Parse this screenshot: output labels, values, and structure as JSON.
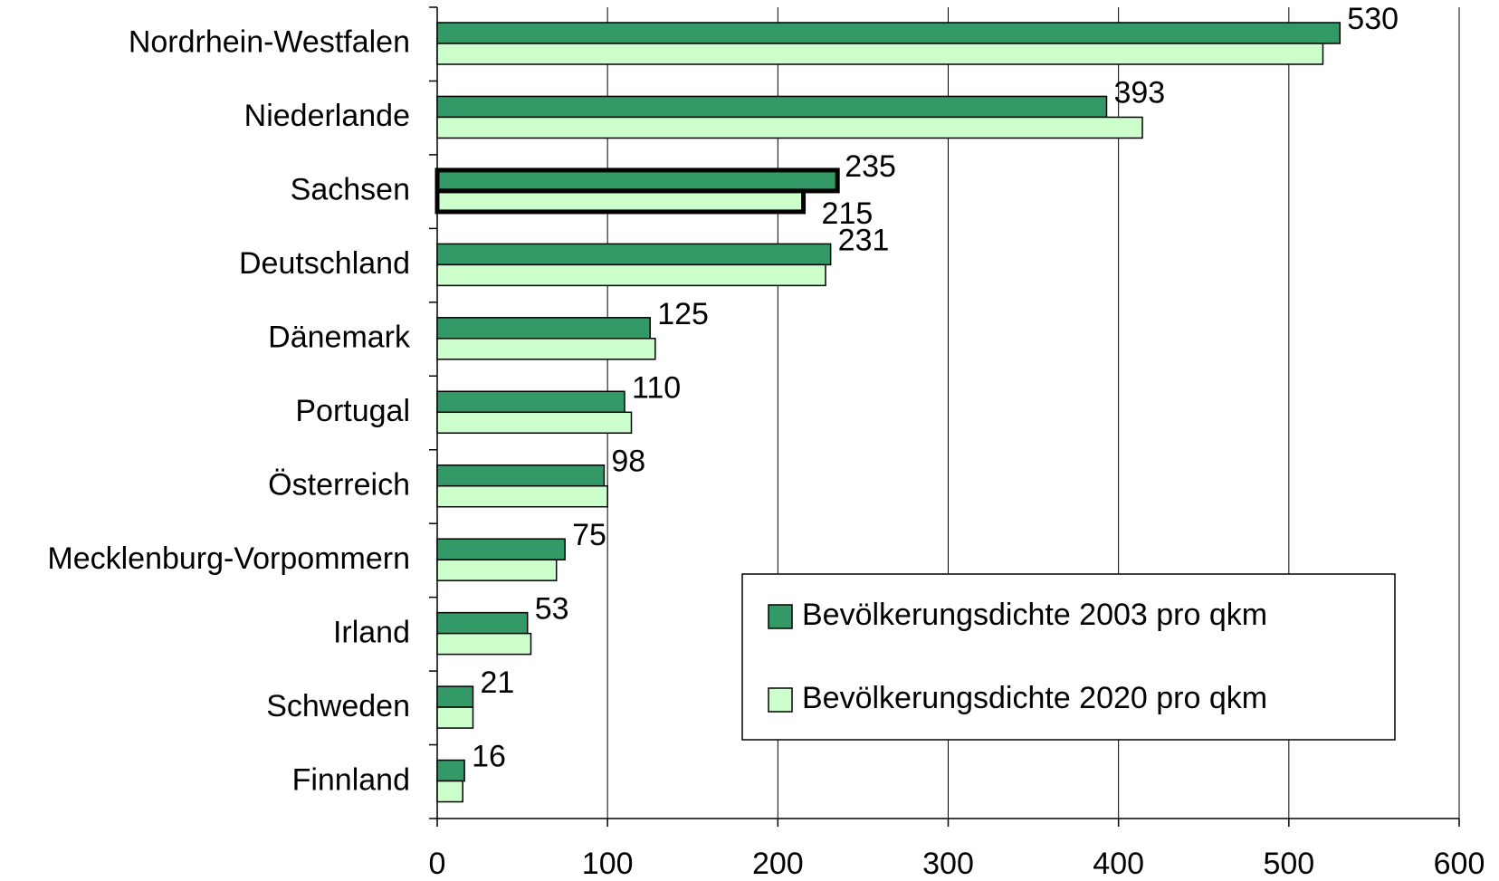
{
  "chart_data": {
    "type": "bar",
    "orientation": "horizontal",
    "categories": [
      "Nordrhein-Westfalen",
      "Niederlande",
      "Sachsen",
      "Deutschland",
      "Dänemark",
      "Portugal",
      "Österreich",
      "Mecklenburg-Vorpommern",
      "Irland",
      "Schweden",
      "Finnland"
    ],
    "series": [
      {
        "name": "Bevölkerungsdichte 2003 pro qkm",
        "color": "#339966",
        "values": [
          530,
          393,
          235,
          231,
          125,
          110,
          98,
          75,
          53,
          21,
          16
        ]
      },
      {
        "name": "Bevölkerungsdichte 2020 pro qkm",
        "color": "#ccffcc",
        "values": [
          520,
          414,
          215,
          228,
          128,
          114,
          100,
          70,
          55,
          21,
          15
        ],
        "value_labels": [
          null,
          null,
          "215",
          null,
          null,
          null,
          null,
          null,
          null,
          null,
          null
        ]
      }
    ],
    "highlight": "Sachsen",
    "xlim": [
      0,
      600
    ],
    "xticks": [
      0,
      100,
      200,
      300,
      400,
      500,
      600
    ],
    "grid": true,
    "legend": "lower right"
  }
}
